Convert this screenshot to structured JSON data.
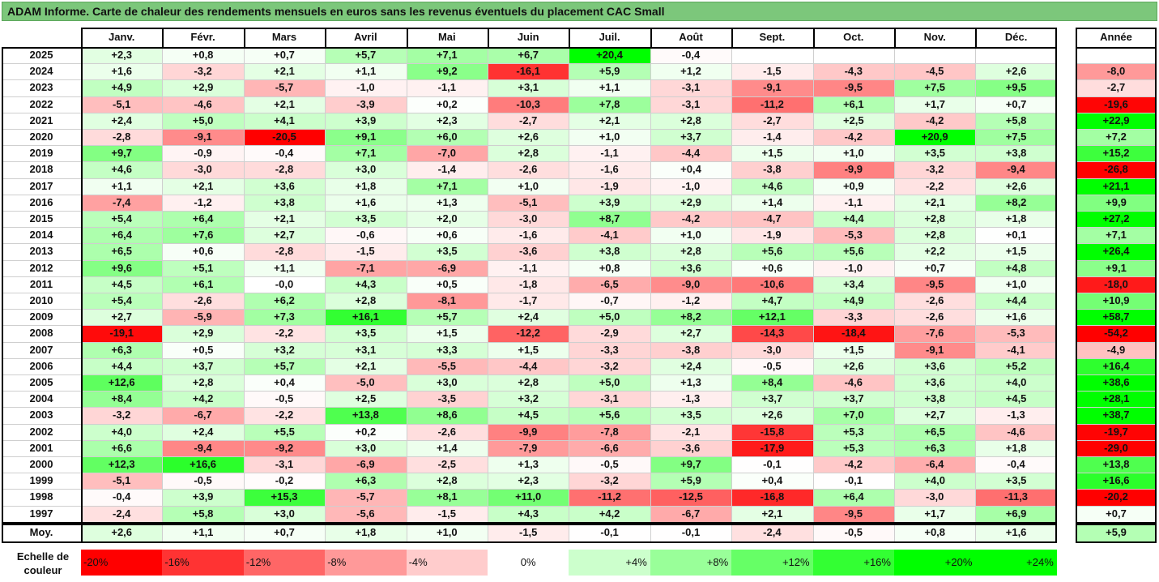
{
  "title": "ADAM Informe. Carte de chaleur des rendements mensuels en euros sans les revenus éventuels du placement CAC Small",
  "chart_data": {
    "type": "heatmap",
    "months": [
      "Janv.",
      "Févr.",
      "Mars",
      "Avril",
      "Mai",
      "Juin",
      "Juil.",
      "Août",
      "Sept.",
      "Oct.",
      "Nov.",
      "Déc."
    ],
    "annual_label": "Année",
    "average_label": "Moy.",
    "rows": [
      {
        "year": "2025",
        "m": [
          "+2,3",
          "+0,8",
          "+0,7",
          "+5,7",
          "+7,1",
          "+6,7",
          "+20,4",
          "-0,4",
          "",
          "",
          "",
          ""
        ],
        "annual": ""
      },
      {
        "year": "2024",
        "m": [
          "+1,6",
          "-3,2",
          "+2,1",
          "+1,1",
          "+9,2",
          "-16,1",
          "+5,9",
          "+1,2",
          "-1,5",
          "-4,3",
          "-4,5",
          "+2,6"
        ],
        "annual": "-8,0"
      },
      {
        "year": "2023",
        "m": [
          "+4,9",
          "+2,9",
          "-5,7",
          "-1,0",
          "-1,1",
          "+3,1",
          "+1,1",
          "-3,1",
          "-9,1",
          "-9,5",
          "+7,5",
          "+9,5"
        ],
        "annual": "-2,7"
      },
      {
        "year": "2022",
        "m": [
          "-5,1",
          "-4,6",
          "+2,1",
          "-3,9",
          "+0,2",
          "-10,3",
          "+7,8",
          "-3,1",
          "-11,2",
          "+6,1",
          "+1,7",
          "+0,7"
        ],
        "annual": "-19,6"
      },
      {
        "year": "2021",
        "m": [
          "+2,4",
          "+5,0",
          "+4,1",
          "+3,9",
          "+2,3",
          "-2,7",
          "+2,1",
          "+2,8",
          "-2,7",
          "+2,5",
          "-4,2",
          "+5,8"
        ],
        "annual": "+22,9"
      },
      {
        "year": "2020",
        "m": [
          "-2,8",
          "-9,1",
          "-20,5",
          "+9,1",
          "+6,0",
          "+2,6",
          "+1,0",
          "+3,7",
          "-1,4",
          "-4,2",
          "+20,9",
          "+7,5"
        ],
        "annual": "+7,2"
      },
      {
        "year": "2019",
        "m": [
          "+9,7",
          "-0,9",
          "-0,4",
          "+7,1",
          "-7,0",
          "+2,8",
          "-1,1",
          "-4,4",
          "+1,5",
          "+1,0",
          "+3,5",
          "+3,8"
        ],
        "annual": "+15,2"
      },
      {
        "year": "2018",
        "m": [
          "+4,6",
          "-3,0",
          "-2,8",
          "+3,0",
          "-1,4",
          "-2,6",
          "-1,6",
          "+0,4",
          "-3,8",
          "-9,9",
          "-3,2",
          "-9,4"
        ],
        "annual": "-26,8"
      },
      {
        "year": "2017",
        "m": [
          "+1,1",
          "+2,1",
          "+3,6",
          "+1,8",
          "+7,1",
          "+1,0",
          "-1,9",
          "-1,0",
          "+4,6",
          "+0,9",
          "-2,2",
          "+2,6"
        ],
        "annual": "+21,1"
      },
      {
        "year": "2016",
        "m": [
          "-7,4",
          "-1,2",
          "+3,8",
          "+1,6",
          "+1,3",
          "-5,1",
          "+3,9",
          "+2,9",
          "+1,4",
          "-1,1",
          "+2,1",
          "+8,2"
        ],
        "annual": "+9,9"
      },
      {
        "year": "2015",
        "m": [
          "+5,4",
          "+6,4",
          "+2,1",
          "+3,5",
          "+2,0",
          "-3,0",
          "+8,7",
          "-4,2",
          "-4,7",
          "+4,4",
          "+2,8",
          "+1,8"
        ],
        "annual": "+27,2"
      },
      {
        "year": "2014",
        "m": [
          "+6,4",
          "+7,6",
          "+2,7",
          "-0,6",
          "+0,6",
          "-1,6",
          "-4,1",
          "+1,0",
          "-1,9",
          "-5,3",
          "+2,8",
          "+0,1"
        ],
        "annual": "+7,1"
      },
      {
        "year": "2013",
        "m": [
          "+6,5",
          "+0,6",
          "-2,8",
          "-1,5",
          "+3,5",
          "-3,6",
          "+3,8",
          "+2,8",
          "+5,6",
          "+5,6",
          "+2,2",
          "+1,5"
        ],
        "annual": "+26,4"
      },
      {
        "year": "2012",
        "m": [
          "+9,6",
          "+5,1",
          "+1,1",
          "-7,1",
          "-6,9",
          "-1,1",
          "+0,8",
          "+3,6",
          "+0,6",
          "-1,0",
          "+0,7",
          "+4,8"
        ],
        "annual": "+9,1"
      },
      {
        "year": "2011",
        "m": [
          "+4,5",
          "+6,1",
          "-0,0",
          "+4,3",
          "+0,5",
          "-1,8",
          "-6,5",
          "-9,0",
          "-10,6",
          "+3,4",
          "-9,5",
          "+1,0"
        ],
        "annual": "-18,0"
      },
      {
        "year": "2010",
        "m": [
          "+5,4",
          "-2,6",
          "+6,2",
          "+2,8",
          "-8,1",
          "-1,7",
          "-0,7",
          "-1,2",
          "+4,7",
          "+4,9",
          "-2,6",
          "+4,4"
        ],
        "annual": "+10,9"
      },
      {
        "year": "2009",
        "m": [
          "+2,7",
          "-5,9",
          "+7,3",
          "+16,1",
          "+5,7",
          "+2,4",
          "+5,0",
          "+8,2",
          "+12,1",
          "-3,3",
          "-2,6",
          "+1,6"
        ],
        "annual": "+58,7"
      },
      {
        "year": "2008",
        "m": [
          "-19,1",
          "+2,9",
          "-2,2",
          "+3,5",
          "+1,5",
          "-12,2",
          "-2,9",
          "+2,7",
          "-14,3",
          "-18,4",
          "-7,6",
          "-5,3"
        ],
        "annual": "-54,2"
      },
      {
        "year": "2007",
        "m": [
          "+6,3",
          "+0,5",
          "+3,2",
          "+3,1",
          "+3,3",
          "+1,5",
          "-3,3",
          "-3,8",
          "-3,0",
          "+1,5",
          "-9,1",
          "-4,1"
        ],
        "annual": "-4,9"
      },
      {
        "year": "2006",
        "m": [
          "+4,4",
          "+3,7",
          "+5,7",
          "+2,1",
          "-5,5",
          "-4,4",
          "-3,2",
          "+2,4",
          "-0,5",
          "+2,6",
          "+3,6",
          "+5,2"
        ],
        "annual": "+16,4"
      },
      {
        "year": "2005",
        "m": [
          "+12,6",
          "+2,8",
          "+0,4",
          "-5,0",
          "+3,0",
          "+2,8",
          "+5,0",
          "+1,3",
          "+8,4",
          "-4,6",
          "+3,6",
          "+4,0"
        ],
        "annual": "+38,6"
      },
      {
        "year": "2004",
        "m": [
          "+8,4",
          "+4,2",
          "-0,5",
          "+2,5",
          "-3,5",
          "+3,2",
          "-3,1",
          "-1,3",
          "+3,7",
          "+3,7",
          "+3,8",
          "+4,5"
        ],
        "annual": "+28,1"
      },
      {
        "year": "2003",
        "m": [
          "-3,2",
          "-6,7",
          "-2,2",
          "+13,8",
          "+8,6",
          "+4,5",
          "+5,6",
          "+3,5",
          "+2,6",
          "+7,0",
          "+2,7",
          "-1,3"
        ],
        "annual": "+38,7"
      },
      {
        "year": "2002",
        "m": [
          "+4,0",
          "+2,4",
          "+5,5",
          "+0,2",
          "-2,6",
          "-9,9",
          "-7,8",
          "-2,1",
          "-15,8",
          "+5,3",
          "+6,5",
          "-4,6"
        ],
        "annual": "-19,7"
      },
      {
        "year": "2001",
        "m": [
          "+6,6",
          "-9,4",
          "-9,2",
          "+3,0",
          "+1,4",
          "-7,9",
          "-6,6",
          "-3,6",
          "-17,9",
          "+5,3",
          "+6,3",
          "+1,8"
        ],
        "annual": "-29,0"
      },
      {
        "year": "2000",
        "m": [
          "+12,3",
          "+16,6",
          "-3,1",
          "-6,9",
          "-2,5",
          "+1,3",
          "-0,5",
          "+9,7",
          "-0,1",
          "-4,2",
          "-6,4",
          "-0,4"
        ],
        "annual": "+13,8"
      },
      {
        "year": "1999",
        "m": [
          "-5,1",
          "-0,5",
          "-0,2",
          "+6,3",
          "+2,8",
          "+2,3",
          "-3,2",
          "+5,9",
          "+0,4",
          "-0,1",
          "+4,0",
          "+3,5"
        ],
        "annual": "+16,6"
      },
      {
        "year": "1998",
        "m": [
          "-0,4",
          "+3,9",
          "+15,3",
          "-5,7",
          "+8,1",
          "+11,0",
          "-11,2",
          "-12,5",
          "-16,8",
          "+6,4",
          "-3,0",
          "-11,3"
        ],
        "annual": "-20,2"
      },
      {
        "year": "1997",
        "m": [
          "-2,4",
          "+5,8",
          "+3,0",
          "-5,6",
          "-1,5",
          "+4,3",
          "+4,2",
          "-6,7",
          "+2,1",
          "-9,5",
          "+1,7",
          "+6,9"
        ],
        "annual": "+0,7"
      }
    ],
    "average": {
      "m": [
        "+2,6",
        "+1,1",
        "+0,7",
        "+1,8",
        "+1,0",
        "-1,5",
        "-0,1",
        "-0,1",
        "-2,4",
        "-0,5",
        "+0,8",
        "+1,6"
      ],
      "annual": "+5,9"
    },
    "scale_label": "Echelle de couleur",
    "scale": [
      {
        "label": "-20%",
        "value": -20
      },
      {
        "label": "-16%",
        "value": -16
      },
      {
        "label": "-12%",
        "value": -12
      },
      {
        "label": "-8%",
        "value": -8
      },
      {
        "label": "-4%",
        "value": -4
      },
      {
        "label": "0%",
        "value": 0
      },
      {
        "label": "+4%",
        "value": 4
      },
      {
        "label": "+8%",
        "value": 8
      },
      {
        "label": "+12%",
        "value": 12
      },
      {
        "label": "+16%",
        "value": 16
      },
      {
        "label": "+20%",
        "value": 20
      },
      {
        "label": "+24%",
        "value": 24
      }
    ],
    "colors": {
      "negative": "#ff0000",
      "neutral": "#ffffff",
      "positive": "#00ff00"
    }
  }
}
